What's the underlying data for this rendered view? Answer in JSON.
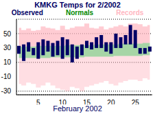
{
  "chart_data": {
    "type": "range",
    "title": "KMKG Temps for 2/2002",
    "x_label": "February 2002",
    "x": [
      1,
      2,
      3,
      4,
      5,
      6,
      7,
      8,
      9,
      10,
      11,
      12,
      13,
      14,
      15,
      16,
      17,
      18,
      19,
      20,
      21,
      22,
      23,
      24,
      25,
      26,
      27,
      28
    ],
    "xlim": [
      0.5,
      28.5
    ],
    "xticks": [
      5,
      10,
      15,
      20,
      25
    ],
    "ylim": [
      -35,
      70
    ],
    "yticks": [
      -30,
      -10,
      10,
      30,
      50
    ],
    "grid": true,
    "series": [
      {
        "name": "Observed",
        "color": "#000066",
        "low": [
          22,
          12,
          25,
          20,
          15,
          20,
          25,
          18,
          20,
          15,
          20,
          10,
          15,
          20,
          30,
          28,
          30,
          30,
          25,
          22,
          30,
          30,
          35,
          35,
          30,
          22,
          22,
          25
        ],
        "high": [
          33,
          35,
          38,
          30,
          38,
          42,
          40,
          37,
          40,
          45,
          42,
          35,
          32,
          35,
          40,
          38,
          45,
          48,
          38,
          38,
          50,
          45,
          48,
          62,
          55,
          30,
          30,
          32
        ]
      },
      {
        "name": "Normals",
        "color": "#008800",
        "low": [
          16,
          16,
          16,
          16,
          16,
          16,
          16,
          17,
          17,
          17,
          17,
          17,
          17,
          17,
          18,
          18,
          18,
          18,
          18,
          18,
          19,
          19,
          19,
          19,
          19,
          19,
          20,
          20
        ],
        "high": [
          32,
          32,
          32,
          32,
          33,
          33,
          33,
          33,
          33,
          33,
          34,
          34,
          34,
          34,
          34,
          34,
          35,
          35,
          35,
          35,
          35,
          36,
          36,
          36,
          36,
          36,
          37,
          37
        ]
      },
      {
        "name": "Records",
        "color": "#ffb6c1",
        "low": [
          -20,
          -22,
          -18,
          -20,
          -25,
          -22,
          -18,
          -22,
          -26,
          -28,
          -30,
          -24,
          -26,
          -30,
          -24,
          -22,
          -20,
          -18,
          -16,
          -20,
          -22,
          -18,
          -16,
          -14,
          -14,
          -16,
          -12,
          -14
        ],
        "high": [
          58,
          55,
          57,
          54,
          55,
          60,
          58,
          57,
          55,
          61,
          56,
          58,
          60,
          60,
          64,
          58,
          57,
          60,
          56,
          58,
          60,
          62,
          60,
          64,
          64,
          63,
          60,
          62
        ]
      }
    ]
  }
}
